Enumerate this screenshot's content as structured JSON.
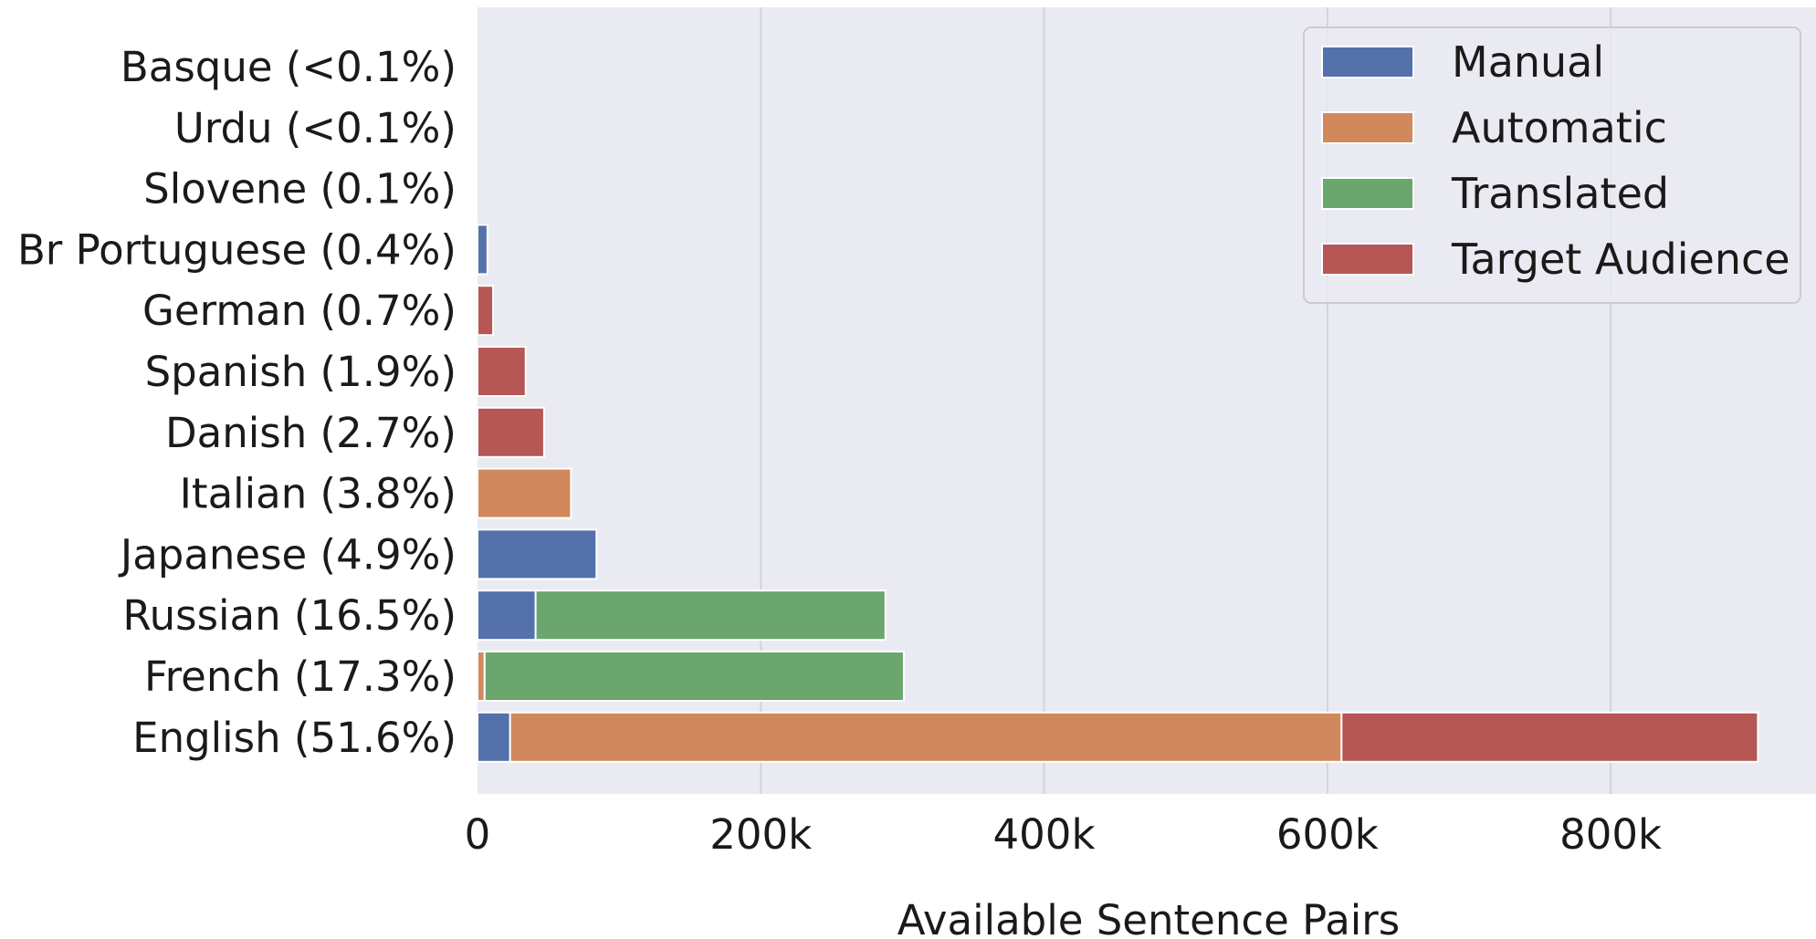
{
  "chart_data": {
    "type": "bar",
    "orientation": "horizontal",
    "stacked": true,
    "xlabel": "Available Sentence Pairs",
    "ylabel": "",
    "xlim": [
      0,
      945000
    ],
    "x_ticks": [
      {
        "value": 0,
        "label": "0"
      },
      {
        "value": 200000,
        "label": "200k"
      },
      {
        "value": 400000,
        "label": "400k"
      },
      {
        "value": 600000,
        "label": "600k"
      },
      {
        "value": 800000,
        "label": "800k"
      }
    ],
    "grid": true,
    "legend_position": "top-right",
    "categories": [
      "Basque (<0.1%)",
      "Urdu (<0.1%)",
      "Slovene (0.1%)",
      "Br Portuguese (0.4%)",
      "German (0.7%)",
      "Spanish (1.9%)",
      "Danish (2.7%)",
      "Italian (3.8%)",
      "Japanese (4.9%)",
      "Russian (16.5%)",
      "French (17.3%)",
      "English (51.6%)"
    ],
    "series": [
      {
        "name": "Manual",
        "color": "#5471AB",
        "values": [
          0,
          0,
          0,
          7000,
          0,
          0,
          0,
          0,
          84000,
          41000,
          0,
          23000
        ]
      },
      {
        "name": "Automatic",
        "color": "#D1885C",
        "values": [
          0,
          0,
          0,
          0,
          0,
          0,
          0,
          66000,
          0,
          0,
          5000,
          587000
        ]
      },
      {
        "name": "Translated",
        "color": "#6AA66E",
        "values": [
          0,
          0,
          0,
          0,
          0,
          0,
          0,
          0,
          0,
          247000,
          296000,
          0
        ]
      },
      {
        "name": "Target Audience",
        "color": "#B65655",
        "values": [
          0,
          0,
          0,
          0,
          11000,
          34000,
          47000,
          0,
          0,
          0,
          0,
          294000
        ]
      }
    ]
  }
}
